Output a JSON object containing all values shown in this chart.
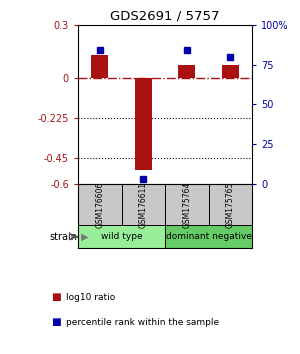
{
  "title": "GDS2691 / 5757",
  "samples": [
    "GSM176606",
    "GSM176611",
    "GSM175764",
    "GSM175765"
  ],
  "log10_ratio": [
    0.13,
    -0.52,
    0.07,
    0.07
  ],
  "percentile_rank": [
    84,
    3,
    84,
    80
  ],
  "ylim_left": [
    -0.6,
    0.3
  ],
  "yticks_left": [
    0.3,
    0.0,
    -0.225,
    -0.45,
    -0.6
  ],
  "ytick_labels_left": [
    "0.3",
    "0",
    "-0.225",
    "-0.45",
    "-0.6"
  ],
  "ylim_right": [
    0,
    100
  ],
  "yticks_right": [
    100,
    75,
    50,
    25,
    0
  ],
  "ytick_labels_right": [
    "100%",
    "75",
    "50",
    "25",
    "0"
  ],
  "bar_color": "#AA1111",
  "dot_color": "#0000AA",
  "zero_line_color": "#AA1111",
  "groups": [
    {
      "name": "wild type",
      "indices": [
        0,
        1
      ],
      "color": "#99EE99"
    },
    {
      "name": "dominant negative",
      "indices": [
        2,
        3
      ],
      "color": "#66CC66"
    }
  ],
  "group_label": "strain",
  "legend_red": "log10 ratio",
  "legend_blue": "percentile rank within the sample",
  "bar_width": 0.4,
  "sample_box_color": "#C8C8C8"
}
